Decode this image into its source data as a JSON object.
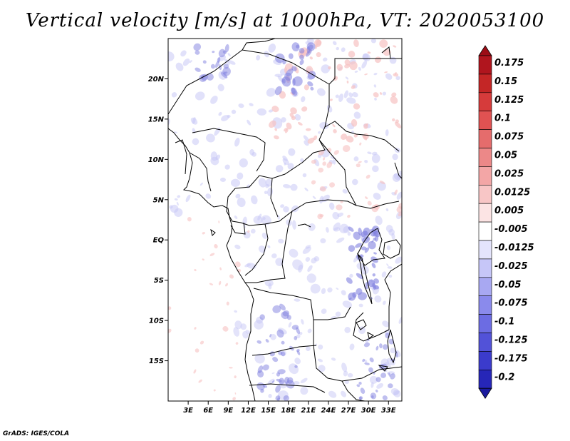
{
  "title": "Vertical velocity [m/s] at 1000hPa, VT: 2020053100",
  "credit": "GrADS: IGES/COLA",
  "map": {
    "lat_range": [
      -20,
      25
    ],
    "lon_range": [
      0,
      35
    ],
    "lat_ticks": [
      {
        "value": 20,
        "label": "20N"
      },
      {
        "value": 15,
        "label": "15N"
      },
      {
        "value": 10,
        "label": "10N"
      },
      {
        "value": 5,
        "label": "5N"
      },
      {
        "value": 0,
        "label": "EQ"
      },
      {
        "value": -5,
        "label": "5S"
      },
      {
        "value": -10,
        "label": "10S"
      },
      {
        "value": -15,
        "label": "15S"
      }
    ],
    "lon_ticks": [
      {
        "value": 3,
        "label": "3E"
      },
      {
        "value": 6,
        "label": "6E"
      },
      {
        "value": 9,
        "label": "9E"
      },
      {
        "value": 12,
        "label": "12E"
      },
      {
        "value": 15,
        "label": "15E"
      },
      {
        "value": 18,
        "label": "18E"
      },
      {
        "value": 21,
        "label": "21E"
      },
      {
        "value": 24,
        "label": "24E"
      },
      {
        "value": 27,
        "label": "27E"
      },
      {
        "value": 30,
        "label": "30E"
      },
      {
        "value": 33,
        "label": "33E"
      }
    ]
  },
  "colorbar": [
    {
      "label": "0.175",
      "color": "#b0151e"
    },
    {
      "label": "0.15",
      "color": "#c42626"
    },
    {
      "label": "0.125",
      "color": "#d63b3b"
    },
    {
      "label": "0.1",
      "color": "#e05252"
    },
    {
      "label": "0.075",
      "color": "#e56c6c"
    },
    {
      "label": "0.05",
      "color": "#ec8888"
    },
    {
      "label": "0.025",
      "color": "#f3a6a6"
    },
    {
      "label": "0.0125",
      "color": "#f8c6c6"
    },
    {
      "label": "0.005",
      "color": "#fce4e4"
    },
    {
      "label": "-0.005",
      "color": "#ffffff"
    },
    {
      "label": "-0.0125",
      "color": "#e4e4fc"
    },
    {
      "label": "-0.025",
      "color": "#c6c6f8"
    },
    {
      "label": "-0.05",
      "color": "#a8a8f2"
    },
    {
      "label": "-0.075",
      "color": "#8a8aec"
    },
    {
      "label": "-0.1",
      "color": "#6c6ce3"
    },
    {
      "label": "-0.125",
      "color": "#5252d8"
    },
    {
      "label": "-0.175",
      "color": "#3b3bcc"
    },
    {
      "label": "-0.2",
      "color": "#2626b8"
    }
  ],
  "colorbar_top_color": "#9c0d16",
  "colorbar_bottom_color": "#1a1a9e",
  "colors": {
    "positive_fill": "#f6c2c2",
    "negative_fill": "#c8c8f6",
    "negative_strong": "#8080e0",
    "border": "#000000"
  }
}
